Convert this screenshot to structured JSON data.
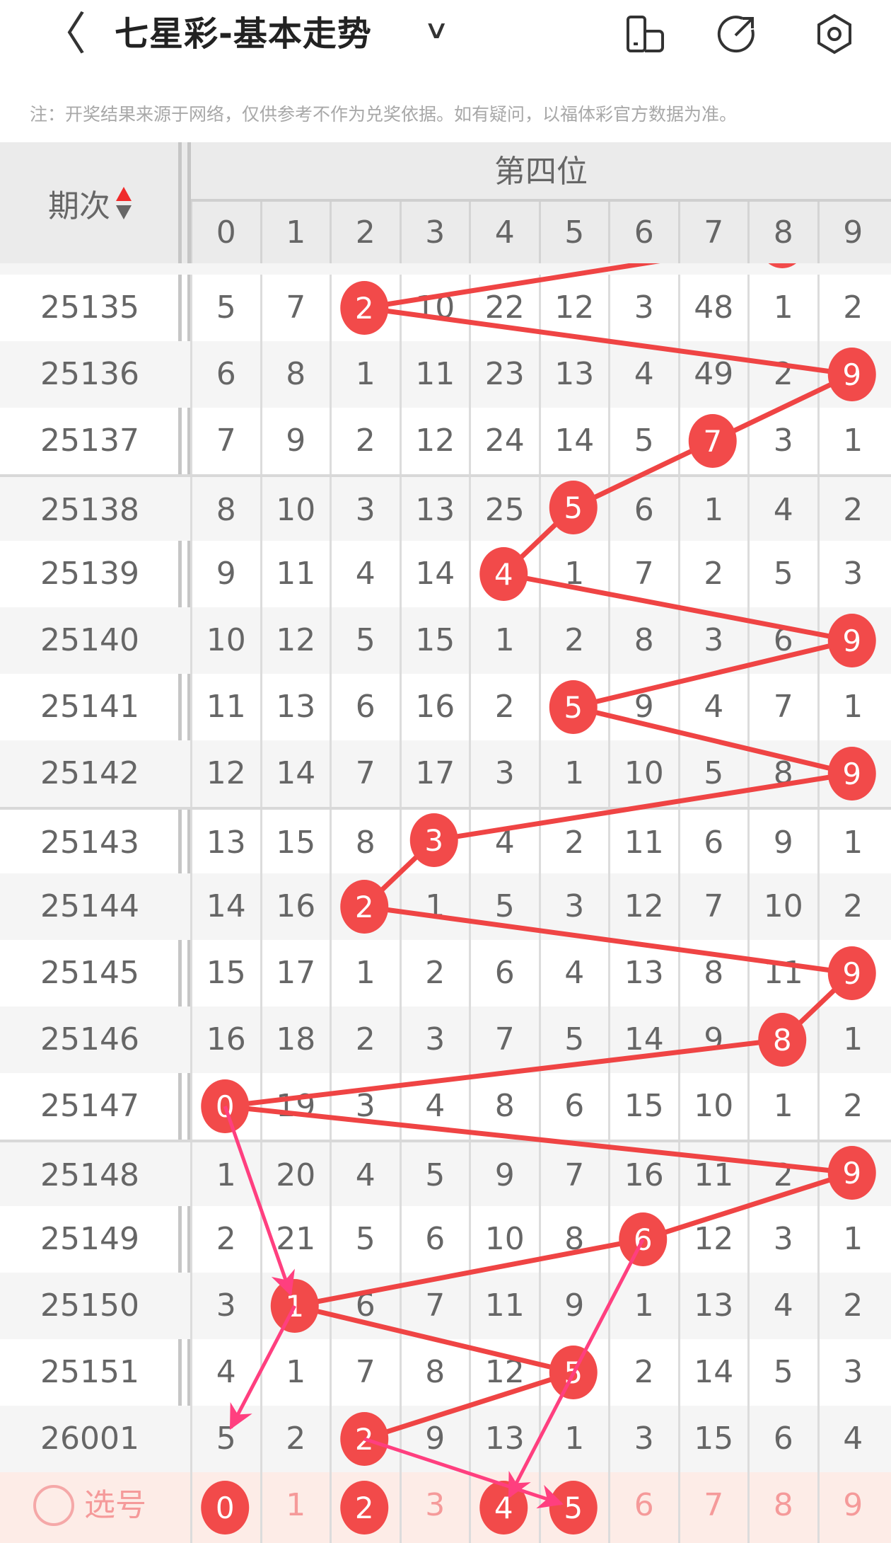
{
  "header": {
    "title": "七星彩-基本走势",
    "back_icon": "chevron-left-icon",
    "dropdown_icon": "chevron-down-icon",
    "icons": [
      "phone-landscape-icon",
      "share-icon",
      "settings-icon"
    ]
  },
  "note": "注：开奖结果来源于网络，仅供参考不作为兑奖依据。如有疑问，以福体彩官方数据为准。",
  "table": {
    "period_header": "期次",
    "position_header": "第四位",
    "digits": [
      "0",
      "1",
      "2",
      "3",
      "4",
      "5",
      "6",
      "7",
      "8",
      "9"
    ],
    "rows": [
      {
        "period": "25135",
        "values": [
          5,
          7,
          2,
          10,
          22,
          12,
          3,
          48,
          1,
          2
        ],
        "win": 2
      },
      {
        "period": "25136",
        "values": [
          6,
          8,
          1,
          11,
          23,
          13,
          4,
          49,
          2,
          9
        ],
        "win": 9
      },
      {
        "period": "25137",
        "values": [
          7,
          9,
          2,
          12,
          24,
          14,
          5,
          7,
          3,
          1
        ],
        "win": 7
      },
      {
        "period": "25138",
        "values": [
          8,
          10,
          3,
          13,
          25,
          5,
          6,
          1,
          4,
          2
        ],
        "win": 5
      },
      {
        "period": "25139",
        "values": [
          9,
          11,
          4,
          14,
          4,
          1,
          7,
          2,
          5,
          3
        ],
        "win": 4
      },
      {
        "period": "25140",
        "values": [
          10,
          12,
          5,
          15,
          1,
          2,
          8,
          3,
          6,
          9
        ],
        "win": 9
      },
      {
        "period": "25141",
        "values": [
          11,
          13,
          6,
          16,
          2,
          5,
          9,
          4,
          7,
          1
        ],
        "win": 5
      },
      {
        "period": "25142",
        "values": [
          12,
          14,
          7,
          17,
          3,
          1,
          10,
          5,
          8,
          9
        ],
        "win": 9
      },
      {
        "period": "25143",
        "values": [
          13,
          15,
          8,
          3,
          4,
          2,
          11,
          6,
          9,
          1
        ],
        "win": 3
      },
      {
        "period": "25144",
        "values": [
          14,
          16,
          2,
          1,
          5,
          3,
          12,
          7,
          10,
          2
        ],
        "win": 2
      },
      {
        "period": "25145",
        "values": [
          15,
          17,
          1,
          2,
          6,
          4,
          13,
          8,
          11,
          9
        ],
        "win": 9
      },
      {
        "period": "25146",
        "values": [
          16,
          18,
          2,
          3,
          7,
          5,
          14,
          9,
          8,
          1
        ],
        "win": 8
      },
      {
        "period": "25147",
        "values": [
          0,
          19,
          3,
          4,
          8,
          6,
          15,
          10,
          1,
          2
        ],
        "win": 0
      },
      {
        "period": "25148",
        "values": [
          1,
          20,
          4,
          5,
          9,
          7,
          16,
          11,
          2,
          9
        ],
        "win": 9
      },
      {
        "period": "25149",
        "values": [
          2,
          21,
          5,
          6,
          10,
          8,
          6,
          12,
          3,
          1
        ],
        "win": 6
      },
      {
        "period": "25150",
        "values": [
          3,
          1,
          6,
          7,
          11,
          9,
          1,
          13,
          4,
          2
        ],
        "win": 1
      },
      {
        "period": "25151",
        "values": [
          4,
          1,
          7,
          8,
          12,
          5,
          2,
          14,
          5,
          3
        ],
        "win": 5
      },
      {
        "period": "26001",
        "values": [
          5,
          2,
          2,
          9,
          13,
          1,
          3,
          15,
          6,
          4
        ],
        "win": 2
      }
    ],
    "select_row": {
      "label": "选号",
      "selected": [
        0,
        2,
        4,
        5
      ]
    },
    "arrows": [
      {
        "from": [
          "25147",
          0
        ],
        "to": [
          "25150",
          1
        ]
      },
      {
        "from": [
          "25150",
          1
        ],
        "to": [
          "26001",
          0
        ]
      },
      {
        "from": [
          "25149",
          6
        ],
        "to": [
          "select",
          4
        ]
      },
      {
        "from": [
          "26001",
          2
        ],
        "to": [
          "select",
          5
        ]
      }
    ]
  },
  "colors": {
    "ball": "#f24a4a",
    "line": "#ef4444",
    "arrow": "#ff3f7f",
    "selected_row_bg": "#fdece7"
  }
}
